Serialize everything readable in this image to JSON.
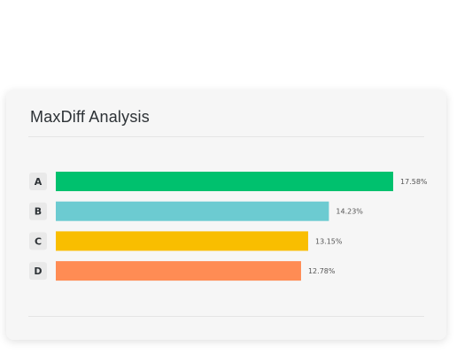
{
  "card": {
    "title": "MaxDiff Analysis"
  },
  "chart_data": {
    "type": "bar",
    "orientation": "horizontal",
    "title": "MaxDiff Analysis",
    "categories": [
      "A",
      "B",
      "C",
      "D"
    ],
    "values": [
      17.58,
      14.23,
      13.15,
      12.78
    ],
    "value_labels": [
      "17.58%",
      "14.23%",
      "13.15%",
      "12.78%"
    ],
    "colors": [
      "#00c16e",
      "#6ccbd1",
      "#f9be00",
      "#ff8c54"
    ],
    "xlim": [
      0,
      20.0
    ],
    "grid": false,
    "legend": "none"
  }
}
